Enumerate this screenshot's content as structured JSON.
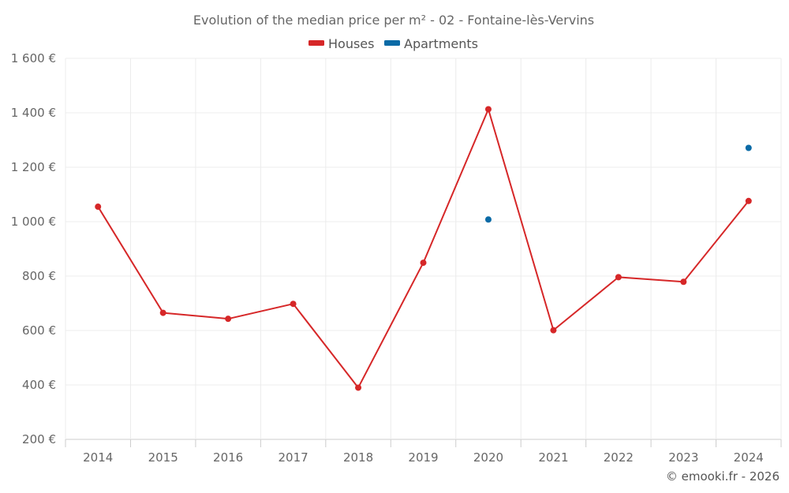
{
  "chart_data": {
    "type": "line",
    "title": "Evolution of the median price per m² - 02 - Fontaine-lès-Vervins",
    "categories": [
      "2014",
      "2015",
      "2016",
      "2017",
      "2018",
      "2019",
      "2020",
      "2021",
      "2022",
      "2023",
      "2024"
    ],
    "y_ticks": [
      "200 €",
      "400 €",
      "600 €",
      "800 €",
      "1 000 €",
      "1 200 €",
      "1 400 €",
      "1 600 €"
    ],
    "ylim": [
      200,
      1600
    ],
    "grid": true,
    "legend_position": "top-center",
    "series": [
      {
        "name": "Houses",
        "color": "#d62728",
        "values": [
          1055,
          665,
          643,
          698,
          390,
          849,
          1413,
          601,
          796,
          779,
          1076
        ],
        "line": true
      },
      {
        "name": "Apartments",
        "color": "#0a6aa6",
        "values": [
          null,
          null,
          null,
          null,
          null,
          null,
          1008,
          null,
          null,
          null,
          1271
        ],
        "line": false
      }
    ],
    "credit": "© emooki.fr - 2026"
  }
}
